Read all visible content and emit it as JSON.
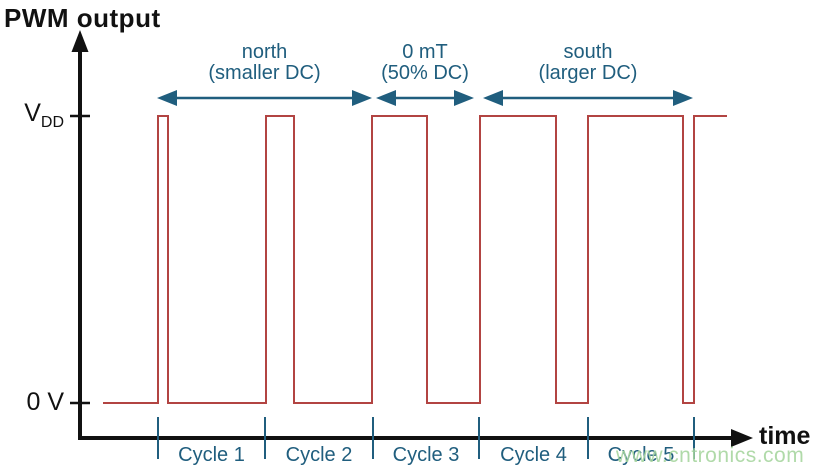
{
  "title": "PWM output",
  "axes": {
    "time_label": "time",
    "vdd_main": "V",
    "vdd_sub": "DD",
    "zero_label": "0 V"
  },
  "annotations": [
    {
      "line1": "north",
      "line2": "(smaller DC)",
      "arrow_from": 157,
      "arrow_to": 372
    },
    {
      "line1": "0 mT",
      "line2": "(50% DC)",
      "arrow_from": 376,
      "arrow_to": 474
    },
    {
      "line1": "south",
      "line2": "(larger DC)",
      "arrow_from": 483,
      "arrow_to": 693
    }
  ],
  "watermark": "www.cntronics.com",
  "colors": {
    "axis": "#111111",
    "waveform": "#b24442",
    "annotation": "#205e7e",
    "watermark": "#a8d6a0"
  },
  "chart_data": {
    "type": "line",
    "subtype": "pwm-digital-waveform",
    "title": "PWM output",
    "xlabel": "time",
    "y_levels": {
      "high": "VDD",
      "low": "0 V"
    },
    "waveform_start_t": 103,
    "cycles": [
      {
        "label": "Cycle 1",
        "t_start": 158,
        "t_end": 265,
        "pulse_start": 158,
        "pulse_end": 168,
        "duty_cycle_pct": 9
      },
      {
        "label": "Cycle 2",
        "t_start": 265,
        "t_end": 373,
        "pulse_start": 266,
        "pulse_end": 294,
        "duty_cycle_pct": 26
      },
      {
        "label": "Cycle 3",
        "t_start": 373,
        "t_end": 479,
        "pulse_start": 372,
        "pulse_end": 427,
        "duty_cycle_pct": 52
      },
      {
        "label": "Cycle 4",
        "t_start": 479,
        "t_end": 588,
        "pulse_start": 480,
        "pulse_end": 556,
        "duty_cycle_pct": 70
      },
      {
        "label": "Cycle 5",
        "t_start": 588,
        "t_end": 694,
        "pulse_start": 588,
        "pulse_end": 683,
        "duty_cycle_pct": 90
      }
    ],
    "partial_cycle": {
      "pulse_start": 694,
      "pulse_end": 727
    },
    "regions": [
      {
        "name": "north (smaller DC)",
        "cycles": [
          "Cycle 1",
          "Cycle 2"
        ]
      },
      {
        "name": "0 mT (50% DC)",
        "cycles": [
          "Cycle 3"
        ]
      },
      {
        "name": "south (larger DC)",
        "cycles": [
          "Cycle 4",
          "Cycle 5"
        ]
      }
    ]
  }
}
